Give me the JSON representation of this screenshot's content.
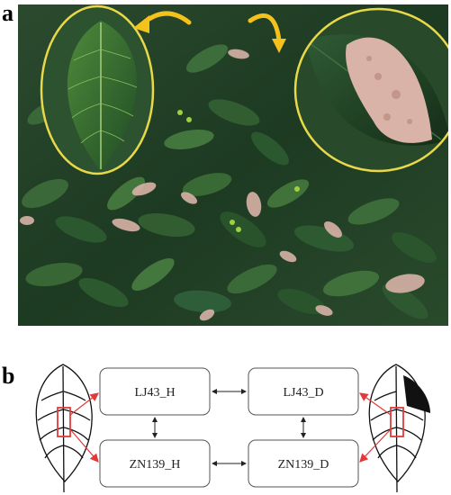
{
  "panels": {
    "a": "a",
    "b": "b"
  },
  "diagram": {
    "boxes": {
      "lj43_h": "LJ43_H",
      "lj43_d": "LJ43_D",
      "zn139_h": "ZN139_H",
      "zn139_d": "ZN139_D"
    }
  },
  "colors": {
    "callout_arrow": "#F4C21A",
    "callout_circle": "#E8D84A",
    "connector_red": "#E23A3A",
    "box_border": "#555555",
    "leaf_dark": "#1C3A22",
    "leaf_mid": "#2E5E33",
    "lesion": "#D9B3A7"
  }
}
